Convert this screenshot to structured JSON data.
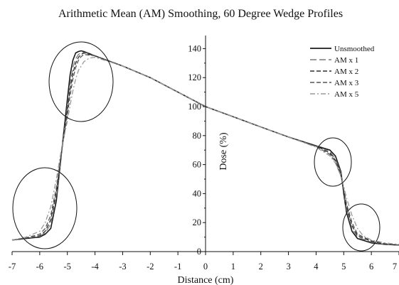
{
  "chart_data": {
    "type": "line",
    "title": "Arithmetic Mean (AM) Smoothing, 60 Degree Wedge Profiles",
    "xlabel": "Distance (cm)",
    "ylabel": "Dose (%)",
    "xlim": [
      -7,
      7
    ],
    "ylim": [
      0,
      150
    ],
    "x_ticks": [
      -7,
      -6,
      -5,
      -4,
      -3,
      -2,
      -1,
      0,
      1,
      2,
      3,
      4,
      5,
      6,
      7
    ],
    "y_ticks": [
      0,
      20,
      40,
      60,
      80,
      100,
      120,
      140
    ],
    "x_tick_labels": [
      "-7",
      "-6",
      "-5",
      "-4",
      "-3",
      "-2",
      "-1",
      "0",
      "1",
      "2",
      "3",
      "4",
      "5",
      "6",
      "7"
    ],
    "y_tick_labels": [
      "0",
      "20",
      "40",
      "60",
      "80",
      "100",
      "120",
      "140"
    ],
    "grid": false,
    "legend_position": "top-right",
    "series": [
      {
        "name": "Unsmoothed",
        "color": "#1a1a1a",
        "dash": "solid",
        "points": [
          [
            -7,
            8
          ],
          [
            -6.5,
            9
          ],
          [
            -6,
            10
          ],
          [
            -5.8,
            12
          ],
          [
            -5.6,
            16
          ],
          [
            -5.4,
            35
          ],
          [
            -5.2,
            70
          ],
          [
            -5.0,
            105
          ],
          [
            -4.9,
            122
          ],
          [
            -4.8,
            132
          ],
          [
            -4.7,
            137
          ],
          [
            -4.6,
            138
          ],
          [
            -4.5,
            138.5
          ],
          [
            -4.4,
            138
          ],
          [
            -4.0,
            135
          ],
          [
            -3,
            128
          ],
          [
            -2,
            120
          ],
          [
            -1,
            110
          ],
          [
            0,
            100
          ],
          [
            1,
            93
          ],
          [
            2,
            86
          ],
          [
            3,
            79
          ],
          [
            4,
            73
          ],
          [
            4.5,
            70
          ],
          [
            4.7,
            66
          ],
          [
            4.9,
            55
          ],
          [
            5.0,
            40
          ],
          [
            5.1,
            27
          ],
          [
            5.3,
            14
          ],
          [
            5.5,
            9
          ],
          [
            6,
            6
          ],
          [
            6.5,
            5
          ],
          [
            7,
            4.5
          ]
        ]
      },
      {
        "name": "AM x 1",
        "color": "#7a7a7a",
        "dash": "long-dash",
        "points": [
          [
            -7,
            8
          ],
          [
            -6.5,
            9
          ],
          [
            -6,
            10.5
          ],
          [
            -5.8,
            13
          ],
          [
            -5.6,
            19
          ],
          [
            -5.4,
            38
          ],
          [
            -5.2,
            70
          ],
          [
            -5.0,
            100
          ],
          [
            -4.9,
            116
          ],
          [
            -4.8,
            127
          ],
          [
            -4.7,
            133
          ],
          [
            -4.6,
            136
          ],
          [
            -4.5,
            137
          ],
          [
            -4.4,
            137.5
          ],
          [
            -4.0,
            135
          ],
          [
            -3,
            128
          ],
          [
            -2,
            120
          ],
          [
            -1,
            110
          ],
          [
            0,
            100
          ],
          [
            1,
            93
          ],
          [
            2,
            86
          ],
          [
            3,
            79
          ],
          [
            4,
            73
          ],
          [
            4.5,
            69
          ],
          [
            4.7,
            64
          ],
          [
            4.9,
            54
          ],
          [
            5.0,
            41
          ],
          [
            5.1,
            29
          ],
          [
            5.3,
            16
          ],
          [
            5.5,
            10
          ],
          [
            6,
            6.5
          ],
          [
            6.5,
            5
          ],
          [
            7,
            4.5
          ]
        ]
      },
      {
        "name": "AM x 2",
        "color": "#2e2e2e",
        "dash": "dash",
        "points": [
          [
            -7,
            8
          ],
          [
            -6.5,
            9
          ],
          [
            -6,
            11
          ],
          [
            -5.8,
            14
          ],
          [
            -5.6,
            22
          ],
          [
            -5.4,
            41
          ],
          [
            -5.2,
            70
          ],
          [
            -5.0,
            97
          ],
          [
            -4.9,
            112
          ],
          [
            -4.8,
            123
          ],
          [
            -4.7,
            130
          ],
          [
            -4.6,
            134
          ],
          [
            -4.5,
            136
          ],
          [
            -4.4,
            137
          ],
          [
            -4.0,
            135
          ],
          [
            -3,
            128
          ],
          [
            -2,
            120
          ],
          [
            -1,
            110
          ],
          [
            0,
            100
          ],
          [
            1,
            93
          ],
          [
            2,
            86
          ],
          [
            3,
            79
          ],
          [
            4,
            73
          ],
          [
            4.5,
            68
          ],
          [
            4.7,
            63
          ],
          [
            4.9,
            53
          ],
          [
            5.0,
            42
          ],
          [
            5.1,
            31
          ],
          [
            5.3,
            18
          ],
          [
            5.5,
            11
          ],
          [
            6,
            7
          ],
          [
            6.5,
            5
          ],
          [
            7,
            4.5
          ]
        ]
      },
      {
        "name": "AM x 3",
        "color": "#555555",
        "dash": "dash",
        "points": [
          [
            -7,
            8
          ],
          [
            -6.5,
            9.5
          ],
          [
            -6,
            12
          ],
          [
            -5.8,
            16
          ],
          [
            -5.6,
            25
          ],
          [
            -5.4,
            44
          ],
          [
            -5.2,
            70
          ],
          [
            -5.0,
            94
          ],
          [
            -4.9,
            108
          ],
          [
            -4.8,
            119
          ],
          [
            -4.7,
            127
          ],
          [
            -4.6,
            132
          ],
          [
            -4.5,
            134.5
          ],
          [
            -4.4,
            136
          ],
          [
            -4.0,
            135
          ],
          [
            -3,
            128
          ],
          [
            -2,
            120
          ],
          [
            -1,
            110
          ],
          [
            0,
            100
          ],
          [
            1,
            93
          ],
          [
            2,
            86
          ],
          [
            3,
            79
          ],
          [
            4,
            72.5
          ],
          [
            4.5,
            67
          ],
          [
            4.7,
            62
          ],
          [
            4.9,
            52
          ],
          [
            5.0,
            43
          ],
          [
            5.1,
            33
          ],
          [
            5.3,
            20
          ],
          [
            5.5,
            12
          ],
          [
            6,
            7.5
          ],
          [
            6.5,
            5.5
          ],
          [
            7,
            4.5
          ]
        ]
      },
      {
        "name": "AM x 5",
        "color": "#9a9a9a",
        "dash": "dash-dot",
        "points": [
          [
            -7,
            8
          ],
          [
            -6.5,
            10
          ],
          [
            -6,
            14
          ],
          [
            -5.8,
            20
          ],
          [
            -5.6,
            31
          ],
          [
            -5.4,
            50
          ],
          [
            -5.2,
            72
          ],
          [
            -5.0,
            90
          ],
          [
            -4.9,
            101
          ],
          [
            -4.8,
            111
          ],
          [
            -4.7,
            119
          ],
          [
            -4.6,
            125
          ],
          [
            -4.4,
            131
          ],
          [
            -4.2,
            133.5
          ],
          [
            -4.0,
            134
          ],
          [
            -3,
            128
          ],
          [
            -2,
            120
          ],
          [
            -1,
            110
          ],
          [
            0,
            100
          ],
          [
            1,
            93
          ],
          [
            2,
            86
          ],
          [
            3,
            79
          ],
          [
            4,
            72
          ],
          [
            4.5,
            66
          ],
          [
            4.7,
            61
          ],
          [
            4.9,
            52
          ],
          [
            5.0,
            45
          ],
          [
            5.1,
            37
          ],
          [
            5.3,
            25
          ],
          [
            5.5,
            16
          ],
          [
            5.7,
            11
          ],
          [
            6,
            8
          ],
          [
            6.5,
            6
          ],
          [
            7,
            5
          ]
        ]
      }
    ]
  }
}
